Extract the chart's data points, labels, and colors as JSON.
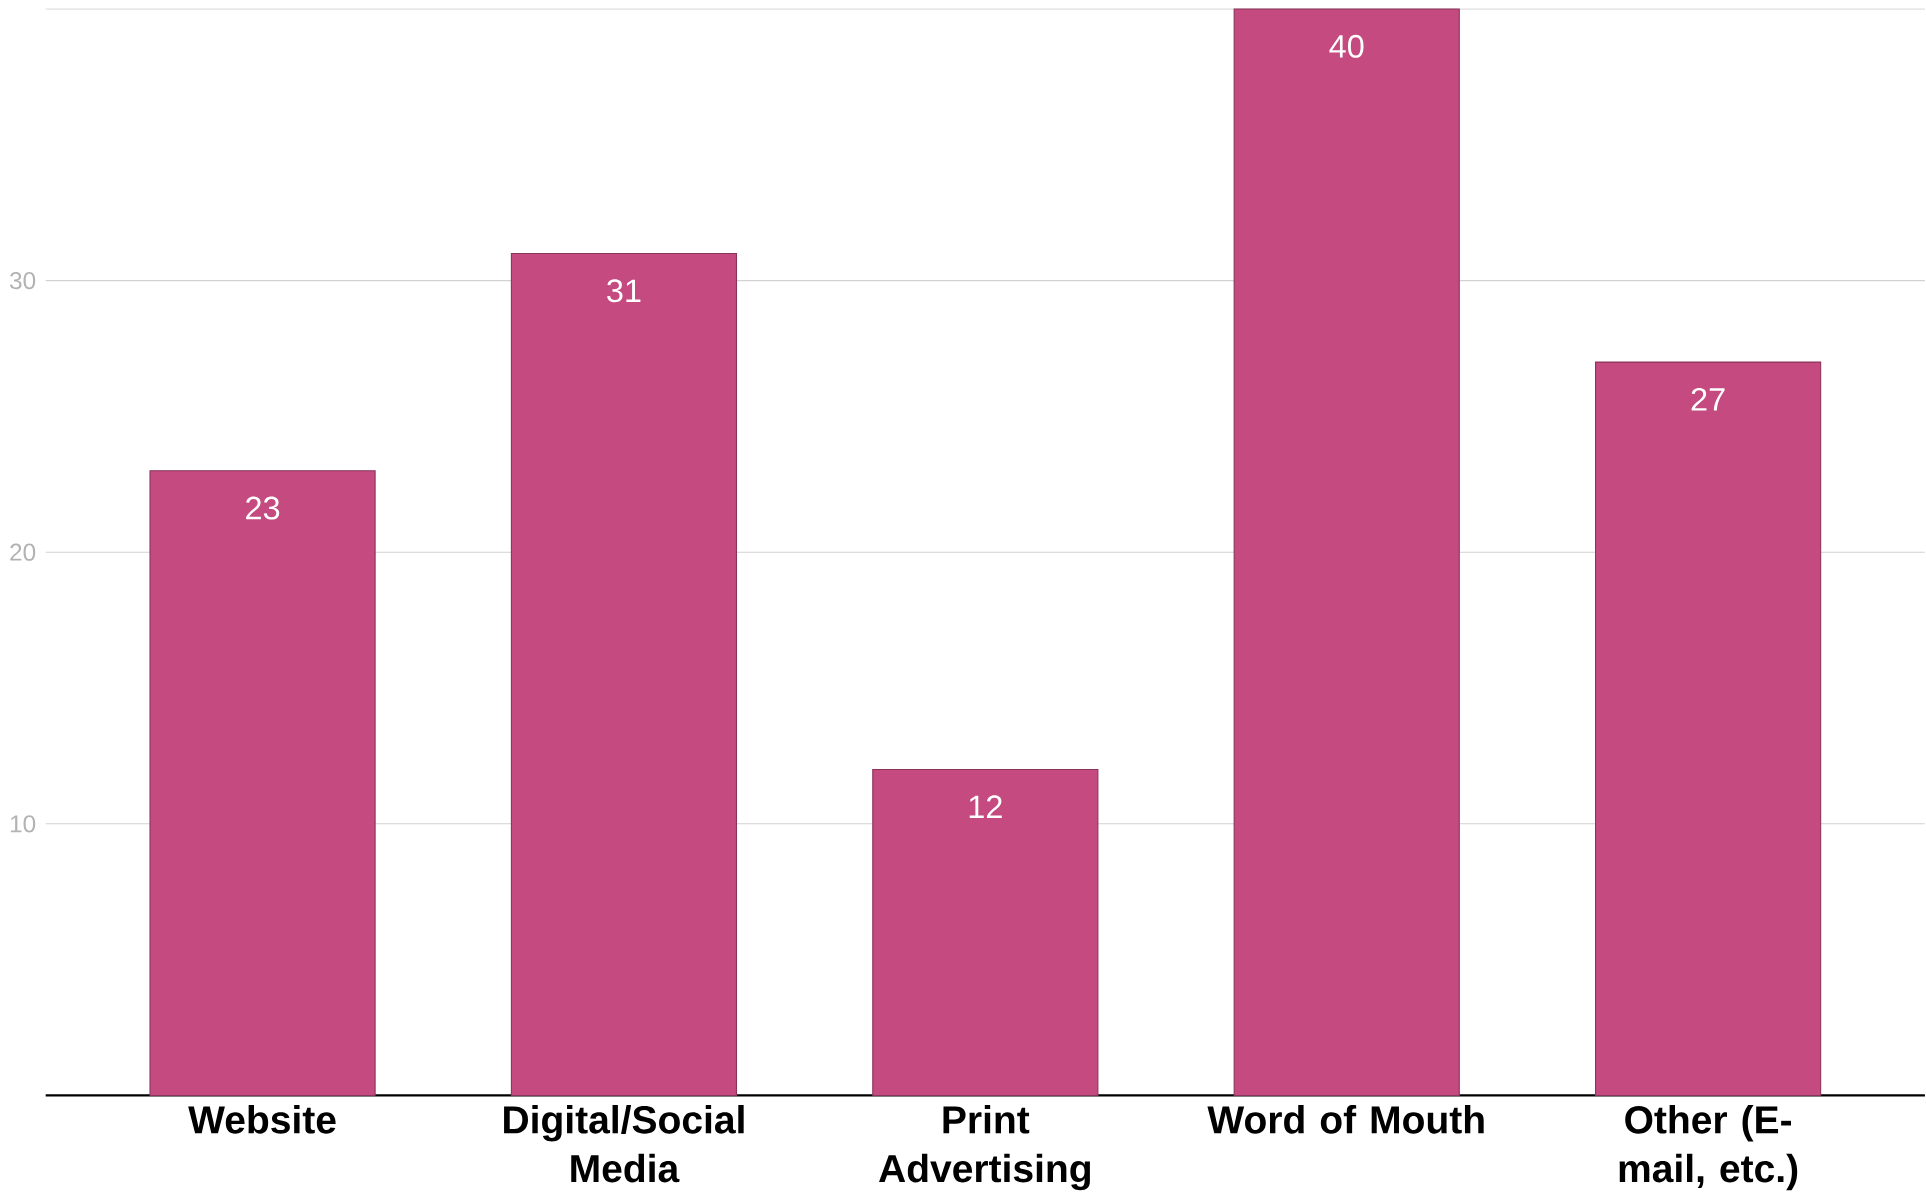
{
  "chart_data": {
    "type": "bar",
    "categories": [
      "Website",
      "Digital/Social Media",
      "Print Advertising",
      "Word of Mouth",
      "Other (E-mail, etc.)"
    ],
    "values": [
      23,
      31,
      12,
      40,
      27
    ],
    "color": "#c44a80",
    "ylim": [
      0,
      40
    ],
    "yticks": [
      {
        "value": 0,
        "label": null
      },
      10,
      20,
      30,
      {
        "value": 40,
        "label": null
      }
    ],
    "grid": "y",
    "data_labels": true
  }
}
